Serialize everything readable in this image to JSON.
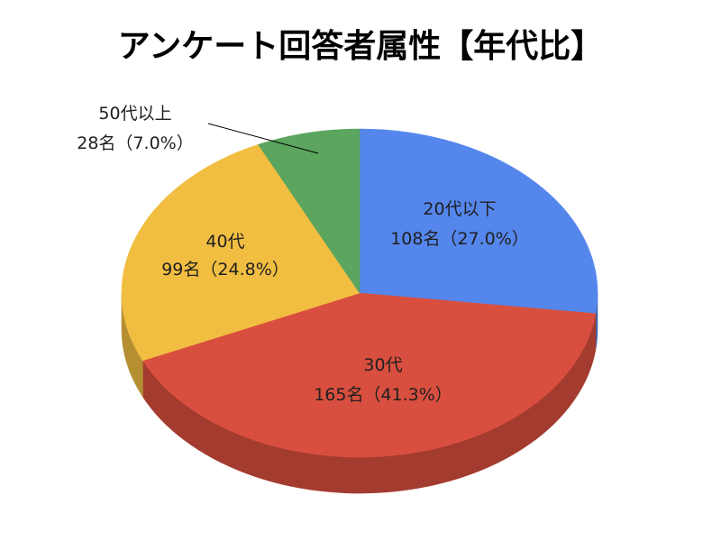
{
  "chart_data": {
    "type": "pie",
    "three_d": true,
    "title": "アンケート回答者属性【年代比】",
    "legend": "none",
    "categories": [
      "20代以下",
      "30代",
      "40代",
      "50代以上"
    ],
    "values": [
      108,
      165,
      99,
      28
    ],
    "percentages": [
      27.0,
      41.3,
      24.8,
      7.0
    ],
    "data_labels": [
      "108名（27.0%）",
      "165名（41.3%）",
      "99名（24.8%）",
      "28名（7.0%）"
    ],
    "colors": [
      "#5586EC",
      "#D94F3F",
      "#F1BE42",
      "#5BA55E"
    ]
  }
}
